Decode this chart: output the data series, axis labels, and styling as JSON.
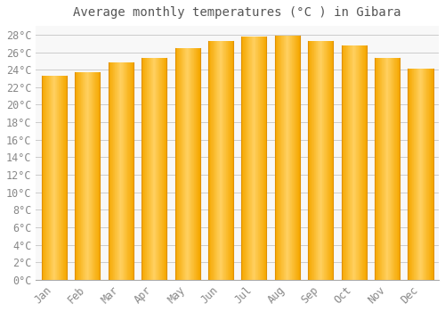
{
  "title": "Average monthly temperatures (°C ) in Gibara",
  "months": [
    "Jan",
    "Feb",
    "Mar",
    "Apr",
    "May",
    "Jun",
    "Jul",
    "Aug",
    "Sep",
    "Oct",
    "Nov",
    "Dec"
  ],
  "temperatures": [
    23.3,
    23.7,
    24.8,
    25.3,
    26.5,
    27.3,
    27.8,
    27.9,
    27.3,
    26.8,
    25.3,
    24.1
  ],
  "bar_color_center": "#FFD060",
  "bar_color_edge": "#F5A800",
  "background_color": "#FFFFFF",
  "plot_bg_color": "#F8F8F8",
  "grid_color": "#CCCCCC",
  "ylim": [
    0,
    29
  ],
  "yticks": [
    0,
    2,
    4,
    6,
    8,
    10,
    12,
    14,
    16,
    18,
    20,
    22,
    24,
    26,
    28
  ],
  "title_fontsize": 10,
  "tick_fontsize": 8.5,
  "title_color": "#555555",
  "tick_color": "#888888",
  "bar_width": 0.75
}
